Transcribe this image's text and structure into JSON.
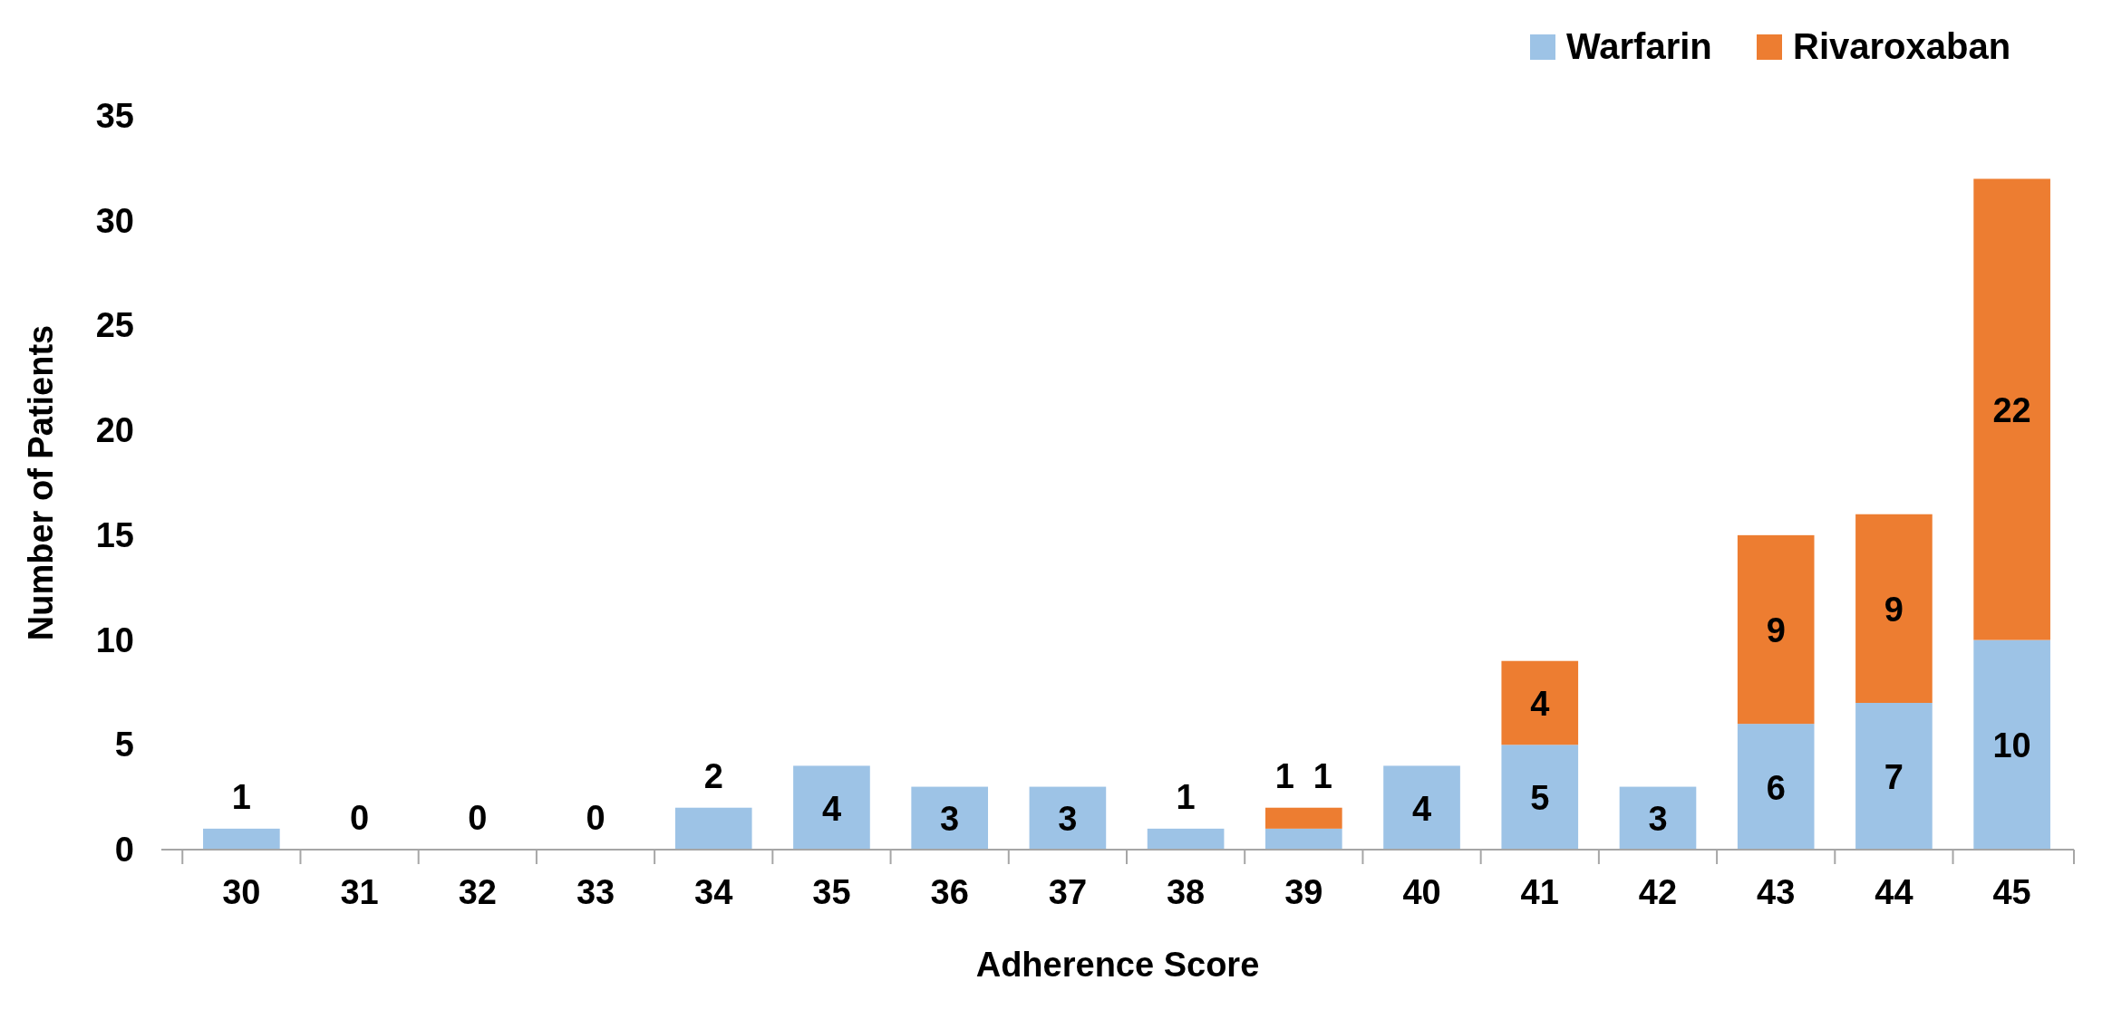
{
  "chart_data": {
    "type": "bar",
    "stacked": true,
    "xlabel": "Adherence Score",
    "ylabel": "Number of Patients",
    "categories": [
      "30",
      "31",
      "32",
      "33",
      "34",
      "35",
      "36",
      "37",
      "38",
      "39",
      "40",
      "41",
      "42",
      "43",
      "44",
      "45"
    ],
    "series": [
      {
        "name": "Warfarin",
        "color": "#9dc3e6",
        "values": [
          1,
          0,
          0,
          0,
          2,
          4,
          3,
          3,
          1,
          1,
          4,
          5,
          3,
          6,
          7,
          10
        ]
      },
      {
        "name": "Rivaroxaban",
        "color": "#ed7d31",
        "values": [
          null,
          null,
          null,
          null,
          null,
          null,
          null,
          null,
          null,
          1,
          null,
          4,
          null,
          9,
          9,
          22
        ]
      }
    ],
    "ylim": [
      0,
      35
    ],
    "yticks": [
      0,
      5,
      10,
      15,
      20,
      25,
      30,
      35
    ],
    "grid": false,
    "legend": "top right",
    "data_labels": true
  }
}
